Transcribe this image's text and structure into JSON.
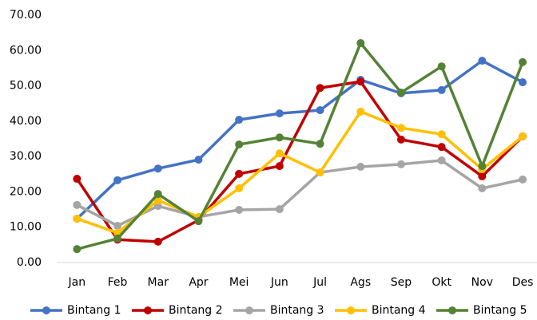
{
  "chart_data": {
    "type": "line",
    "categories": [
      "Jan",
      "Feb",
      "Mar",
      "Apr",
      "Mei",
      "Jun",
      "Jul",
      "Ags",
      "Sep",
      "Okt",
      "Nov",
      "Des"
    ],
    "series": [
      {
        "name": "Bintang 1",
        "color": "#4472c4",
        "values": [
          12.4,
          23.3,
          26.6,
          29.1,
          40.4,
          42.2,
          43.1,
          51.7,
          47.9,
          48.8,
          57.1,
          51.0
        ]
      },
      {
        "name": "Bintang 2",
        "color": "#c00000",
        "values": [
          23.7,
          6.5,
          5.9,
          12.0,
          25.1,
          27.3,
          49.4,
          51.2,
          34.8,
          32.7,
          24.4,
          35.7
        ]
      },
      {
        "name": "Bintang 3",
        "color": "#a5a5a5",
        "values": [
          16.3,
          10.4,
          16.0,
          12.9,
          14.9,
          15.1,
          25.5,
          27.1,
          27.8,
          28.9,
          21.0,
          23.5
        ]
      },
      {
        "name": "Bintang 4",
        "color": "#ffc000",
        "values": [
          12.4,
          8.4,
          17.6,
          12.9,
          21.0,
          30.9,
          25.5,
          42.7,
          38.1,
          36.3,
          26.4,
          35.7
        ]
      },
      {
        "name": "Bintang 5",
        "color": "#548235",
        "values": [
          3.8,
          6.8,
          19.4,
          11.7,
          33.4,
          35.4,
          33.6,
          62.1,
          48.1,
          55.5,
          27.3,
          56.7
        ]
      }
    ],
    "ylim": [
      0,
      70
    ],
    "yticks": [
      {
        "value": 0,
        "label": "0.00"
      },
      {
        "value": 10,
        "label": "10.00"
      },
      {
        "value": 20,
        "label": "20.00"
      },
      {
        "value": 30,
        "label": "30.00"
      },
      {
        "value": 40,
        "label": "40.00"
      },
      {
        "value": 50,
        "label": "50.00"
      },
      {
        "value": 60,
        "label": "60.00"
      },
      {
        "value": 70,
        "label": "70.00"
      }
    ],
    "grid": false,
    "legend": "bottom"
  }
}
